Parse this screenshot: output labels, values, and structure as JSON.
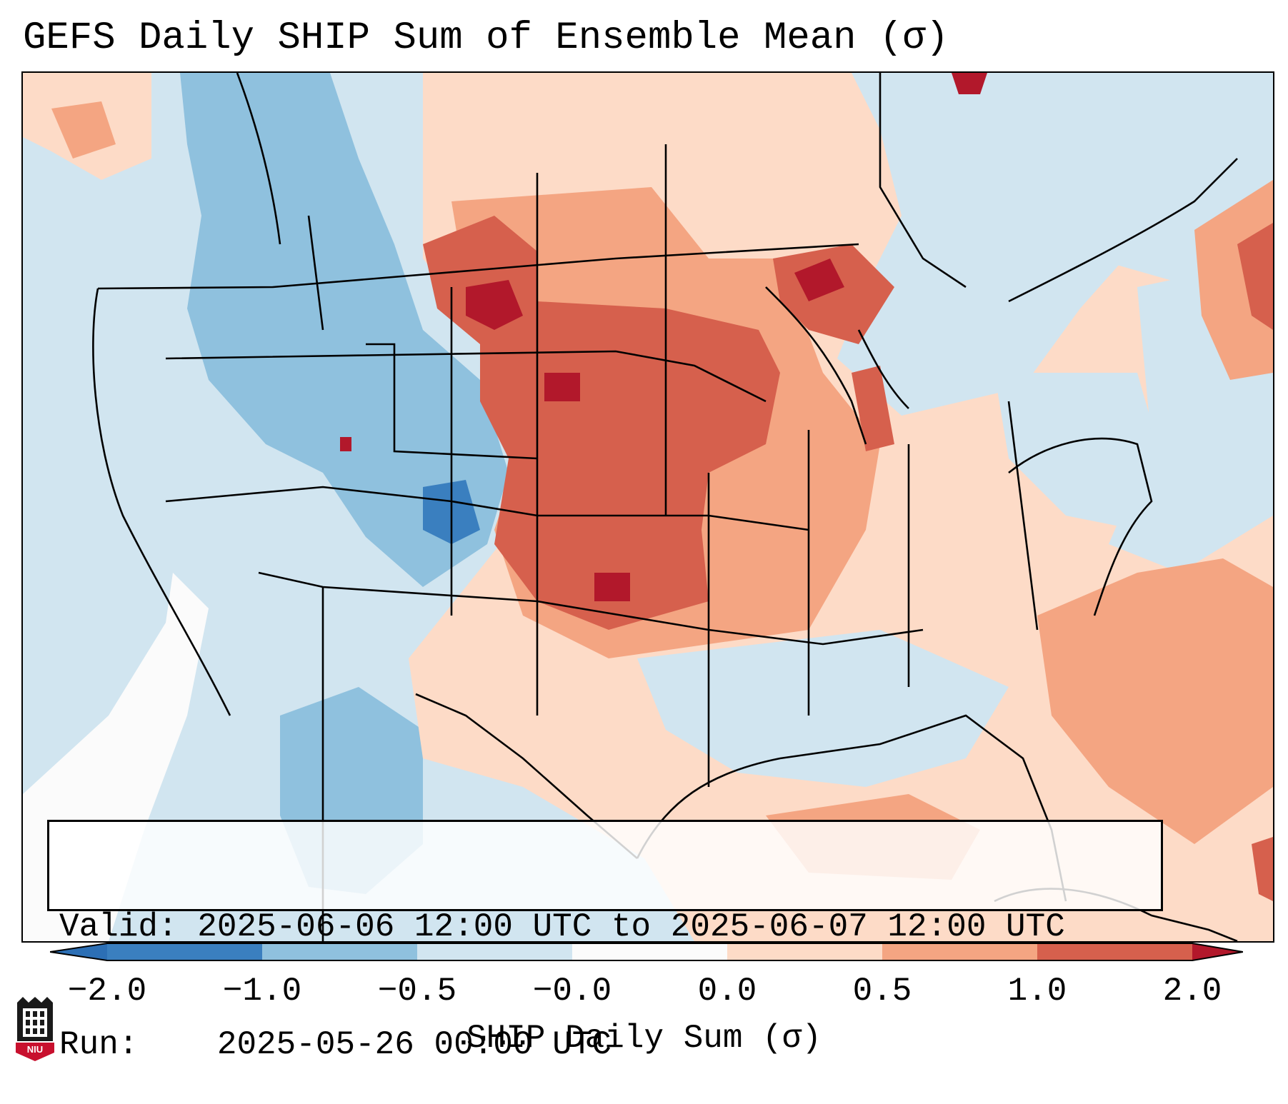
{
  "title": "GEFS Daily SHIP Sum of Ensemble Mean (σ)",
  "info": {
    "valid_label": "Valid:",
    "valid_value": "2025-06-06 12:00 UTC to 2025-06-07 12:00 UTC",
    "run_label": "Run:",
    "run_value": "2025-05-26 00:00 UTC"
  },
  "colorbar": {
    "label": "SHIP Daily Sum (σ)",
    "ticks": [
      "−2.0",
      "−1.0",
      "−0.5",
      "−0.0",
      "0.0",
      "0.5",
      "1.0",
      "2.0"
    ],
    "bin_colors": [
      "#3a7fbf",
      "#8fc1de",
      "#d1e5f0",
      "#fbfbfb",
      "#fddbc7",
      "#f4a582",
      "#d6604d",
      "#b2182b"
    ],
    "extend_colors": {
      "min": "#2c6fb5",
      "max": "#b2182b"
    }
  },
  "map_colors": {
    "ocean_background": "#d0e4ef",
    "strong_negative": "#3a7fbf",
    "negative": "#8fc1de",
    "weak_negative": "#d1e5f0",
    "neutral": "#fbfbfb",
    "weak_positive": "#fddbc7",
    "positive": "#f4a582",
    "strong_positive": "#d6604d",
    "extreme_positive": "#b2182b",
    "boundaries": "#000000"
  },
  "logo": {
    "text": "NIU",
    "color": "#c8102e"
  }
}
